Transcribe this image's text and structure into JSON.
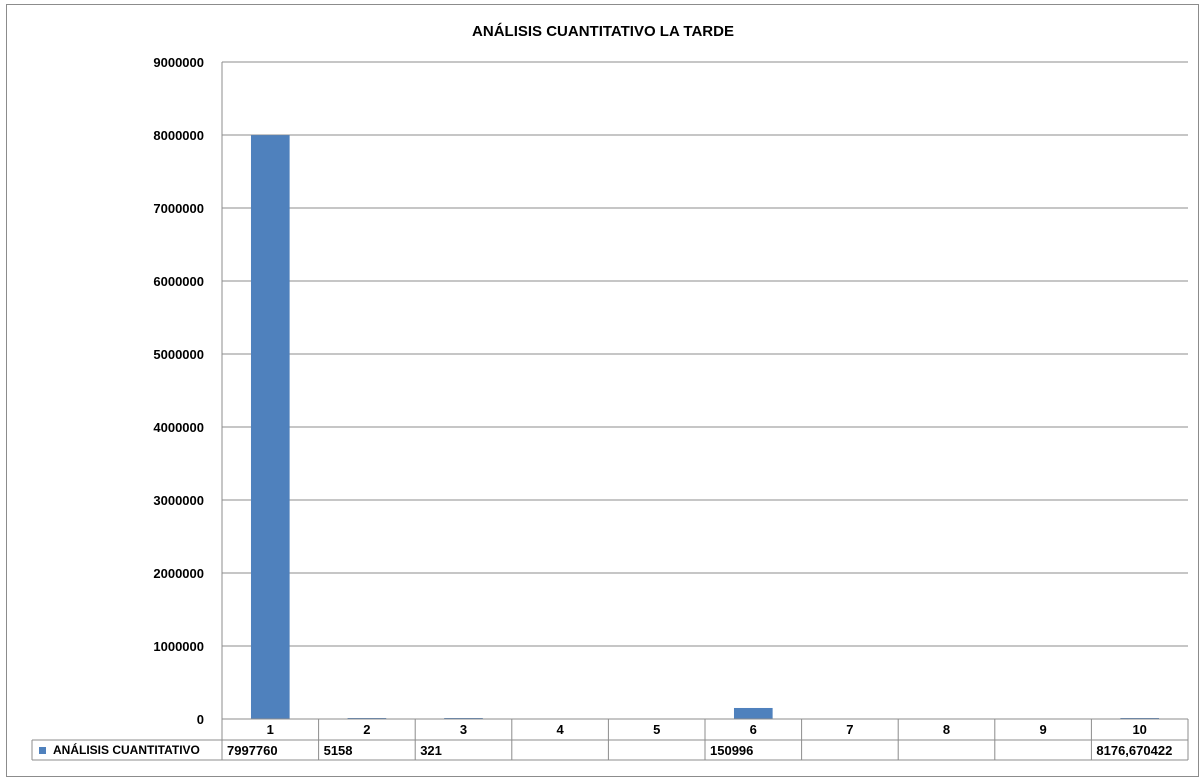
{
  "chart_data": {
    "type": "bar",
    "title": "ANÁLISIS CUANTITATIVO LA TARDE",
    "categories": [
      "1",
      "2",
      "3",
      "4",
      "5",
      "6",
      "7",
      "8",
      "9",
      "10"
    ],
    "series": [
      {
        "name": "ANÁLISIS CUANTITATIVO",
        "values": [
          7997760,
          5158,
          321,
          null,
          null,
          150996,
          null,
          null,
          null,
          8176.670422
        ],
        "labels": [
          "7997760",
          "5158",
          "321",
          "",
          "",
          "150996",
          "",
          "",
          "",
          "8176,670422"
        ],
        "color": "#4f81bd"
      }
    ],
    "ylim": [
      0,
      9000000
    ],
    "yticks": [
      "0",
      "1000000",
      "2000000",
      "3000000",
      "4000000",
      "5000000",
      "6000000",
      "7000000",
      "8000000",
      "9000000"
    ],
    "grid": true,
    "legend": "data-table-left",
    "data_table": true
  }
}
